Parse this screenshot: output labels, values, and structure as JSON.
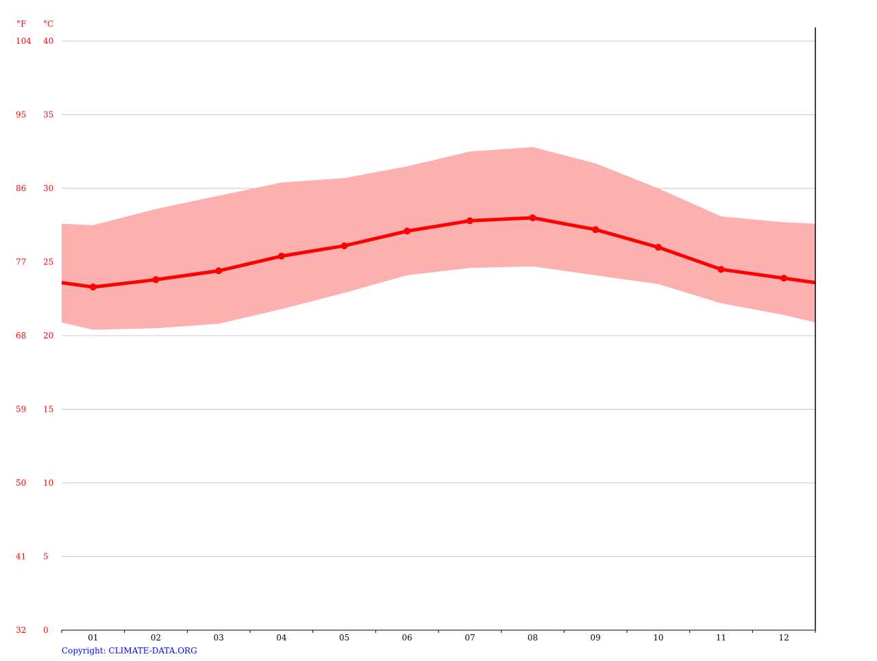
{
  "chart_data": {
    "type": "area",
    "units": {
      "fahrenheit": "°F",
      "celsius": "°C"
    },
    "y_ticks_celsius": [
      "40",
      "35",
      "30",
      "25",
      "20",
      "15",
      "10",
      "5",
      "0"
    ],
    "y_ticks_fahrenheit": [
      "104",
      "95",
      "86",
      "77",
      "68",
      "59",
      "50",
      "41",
      "32"
    ],
    "ylim": [
      0,
      40
    ],
    "categories": [
      "01",
      "02",
      "03",
      "04",
      "05",
      "06",
      "07",
      "08",
      "09",
      "10",
      "11",
      "12"
    ],
    "series": [
      {
        "role": "mean",
        "values": [
          23.3,
          23.8,
          24.4,
          25.4,
          26.1,
          27.1,
          27.8,
          28.0,
          27.2,
          26.0,
          24.5,
          23.9
        ]
      },
      {
        "role": "max",
        "values": [
          27.5,
          28.6,
          29.5,
          30.4,
          30.7,
          31.5,
          32.5,
          32.8,
          31.7,
          30.0,
          28.1,
          27.7
        ]
      },
      {
        "role": "min",
        "values": [
          20.4,
          20.5,
          20.8,
          21.8,
          22.9,
          24.1,
          24.6,
          24.7,
          24.1,
          23.5,
          22.2,
          21.4
        ]
      }
    ],
    "grid": true,
    "colors": {
      "line": "#ff0000",
      "band": "#fdb0b0",
      "tick_labels": "#ff0000",
      "grid": "#c8c8c8",
      "axis": "#000000",
      "copyright": "#0000ff"
    }
  },
  "copyright": "Copyright: CLIMATE-DATA.ORG"
}
